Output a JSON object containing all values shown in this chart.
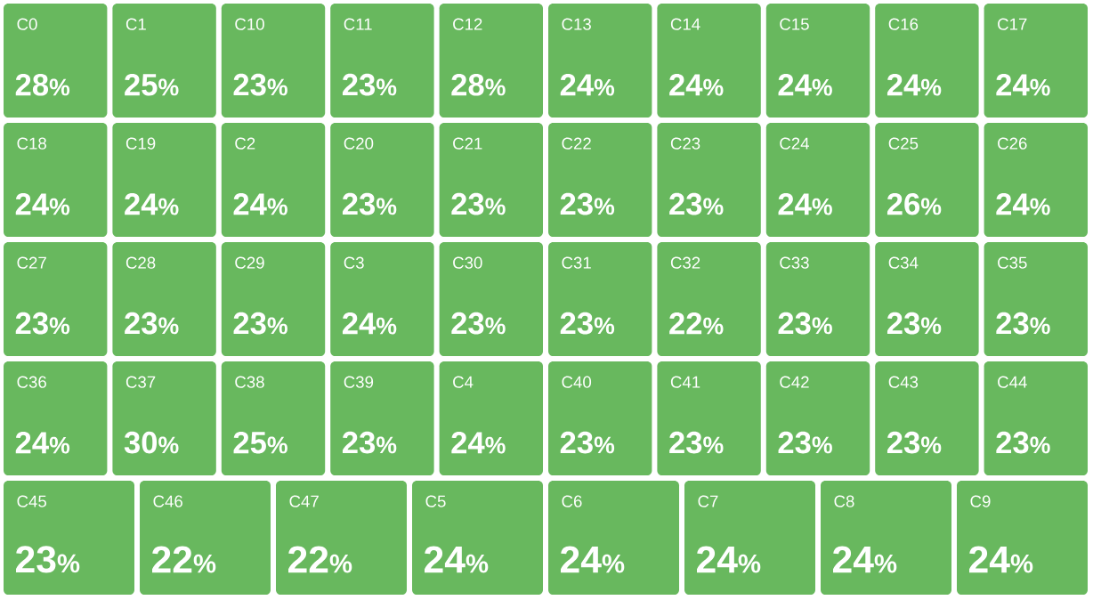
{
  "chart_data": {
    "type": "other",
    "color": "#68b85e",
    "data_labels": true,
    "ylabel": "%",
    "categories": [
      "C0",
      "C1",
      "C10",
      "C11",
      "C12",
      "C13",
      "C14",
      "C15",
      "C16",
      "C17",
      "C18",
      "C19",
      "C2",
      "C20",
      "C21",
      "C22",
      "C23",
      "C24",
      "C25",
      "C26",
      "C27",
      "C28",
      "C29",
      "C3",
      "C30",
      "C31",
      "C32",
      "C33",
      "C34",
      "C35",
      "C36",
      "C37",
      "C38",
      "C39",
      "C4",
      "C40",
      "C41",
      "C42",
      "C43",
      "C44",
      "C45",
      "C46",
      "C47",
      "C5",
      "C6",
      "C7",
      "C8",
      "C9"
    ],
    "values": [
      28,
      25,
      23,
      23,
      28,
      24,
      24,
      24,
      24,
      24,
      24,
      24,
      24,
      23,
      23,
      23,
      23,
      24,
      26,
      24,
      23,
      23,
      23,
      24,
      23,
      23,
      22,
      23,
      23,
      23,
      24,
      30,
      25,
      23,
      24,
      23,
      23,
      23,
      23,
      23,
      23,
      22,
      22,
      24,
      24,
      24,
      24,
      24
    ]
  }
}
